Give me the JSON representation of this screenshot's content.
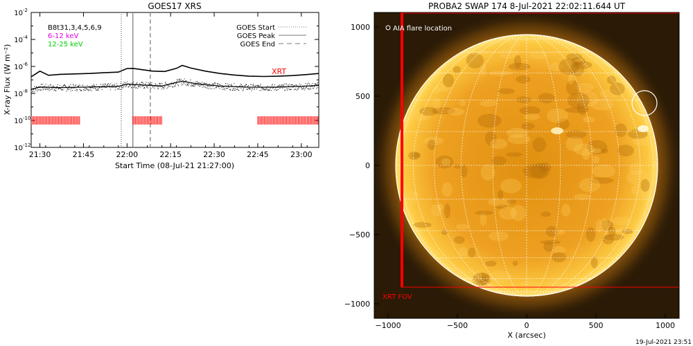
{
  "chart_data": [
    {
      "type": "line",
      "title": "GOES17 XRS",
      "xlabel": "Start Time (08-Jul-21 21:27:00)",
      "ylabel": "X-ray Flux (W m⁻²)",
      "ylog": true,
      "ylim": [
        1e-12,
        0.01
      ],
      "xlim_minutes_after_start": [
        0,
        99
      ],
      "x_tick_labels": [
        "21:30",
        "21:45",
        "22:00",
        "22:15",
        "22:30",
        "22:45",
        "23:00"
      ],
      "x_tick_minutes": [
        3,
        18,
        33,
        48,
        63,
        78,
        93
      ],
      "y_ticks": [
        {
          "exp": -2,
          "label": "10",
          "sup": "-2"
        },
        {
          "exp": -4,
          "label": "10",
          "sup": "-4"
        },
        {
          "exp": -6,
          "label": "10",
          "sup": "-6"
        },
        {
          "exp": -8,
          "label": "10",
          "sup": "-8"
        },
        {
          "exp": -10,
          "label": "10",
          "sup": "-10"
        },
        {
          "exp": -12,
          "label": "10",
          "sup": "-12"
        }
      ],
      "channel_labels": [
        {
          "text": "B8t31,3,4,5,6,9",
          "color": "#000000"
        },
        {
          "text": "6-12 keV",
          "color": "#e000e0"
        },
        {
          "text": "12-25 keV",
          "color": "#00cc00"
        }
      ],
      "legend": [
        {
          "name": "GOES Start",
          "style": "dotted"
        },
        {
          "name": "GOES Peak",
          "style": "solid"
        },
        {
          "name": "GOES End",
          "style": "dashed"
        }
      ],
      "series": [
        {
          "name": "GOES long channel",
          "x": [
            0,
            3,
            6,
            10,
            15,
            20,
            25,
            30,
            33,
            35,
            38,
            42,
            46,
            50,
            52,
            55,
            60,
            65,
            70,
            75,
            80,
            85,
            90,
            95,
            99
          ],
          "y": [
            1.7e-07,
            4.5e-07,
            2.2e-07,
            2.6e-07,
            2.8e-07,
            3e-07,
            3.4e-07,
            3.8e-07,
            7e-07,
            7.2e-07,
            5.8e-07,
            4.5e-07,
            4.2e-07,
            7.2e-07,
            1.2e-06,
            7.5e-07,
            4.5e-07,
            3e-07,
            2.3e-07,
            1.9e-07,
            1.8e-07,
            1.9e-07,
            2.1e-07,
            2.5e-07,
            3e-07
          ]
        },
        {
          "name": "GOES short channel",
          "x": [
            0,
            3,
            10,
            20,
            30,
            33,
            38,
            45,
            50,
            52,
            57,
            65,
            75,
            85,
            95,
            99
          ],
          "y": [
            2e-08,
            3e-08,
            2.7e-08,
            3e-08,
            3.3e-08,
            5e-08,
            4.2e-08,
            3.6e-08,
            6.5e-08,
            8e-08,
            5.2e-08,
            3.5e-08,
            2.9e-08,
            2.9e-08,
            3.5e-08,
            4e-08
          ]
        }
      ],
      "event_lines_minutes": {
        "start": 31,
        "peak": 35,
        "end": 41
      },
      "xrt_label": "XRT",
      "xrt_coverage_minutes": [
        [
          0,
          17
        ],
        [
          35,
          45
        ],
        [
          78,
          99
        ]
      ]
    },
    {
      "type": "image",
      "title": "PROBA2 SWAP 174  8-Jul-2021 22:02:11.644 UT",
      "xlabel": "X (arcsec)",
      "x_tick_labels": [
        "−1000",
        "−500",
        "0",
        "500",
        "1000"
      ],
      "y_tick_labels": [
        "1000",
        "500",
        "0",
        "−500",
        "−1000"
      ],
      "xlim": [
        -1100,
        1100
      ],
      "ylim": [
        -1100,
        1100
      ],
      "annotation": "AIA flare location",
      "flare_location_arcsec": [
        850,
        450
      ],
      "xrt_fov_label": "XRT FOV",
      "xrt_fov_arcsec": {
        "x0": -900,
        "x1": 1100,
        "y0": -880,
        "y1": 1100
      },
      "disk_radius_arcsec": 945,
      "colors": {
        "disk": "#f0a020",
        "limb": "#ffd24a",
        "background": "#2a1a06",
        "fov": "#ff0000"
      }
    }
  ],
  "footer": {
    "timestamp": "19-Jul-2021 23:51"
  }
}
